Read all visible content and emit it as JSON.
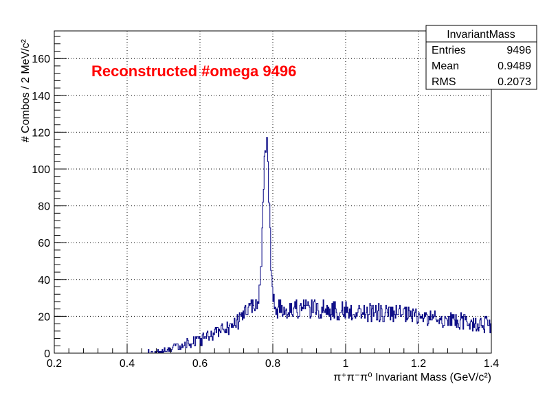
{
  "chart_data": {
    "type": "histogram",
    "annotation": "Reconstructed #omega 9496",
    "xlabel": "π⁺π⁻π⁰ Invariant Mass (GeV/c²)",
    "ylabel": "# Combos / 2 MeV/c²",
    "xlim": [
      0.2,
      1.4
    ],
    "ylim": [
      0,
      175
    ],
    "bin_width": 0.002,
    "grid": true,
    "x_ticks": [
      "0.2",
      "0.4",
      "0.6",
      "0.8",
      "1",
      "1.2",
      "1.4"
    ],
    "y_ticks": [
      "0",
      "20",
      "40",
      "60",
      "80",
      "100",
      "120",
      "140",
      "160"
    ],
    "stats_box": {
      "title": "InvariantMass",
      "rows": [
        {
          "label": "Entries",
          "value": "9496"
        },
        {
          "label": "Mean",
          "value": "0.9489"
        },
        {
          "label": "RMS",
          "value": "0.2073"
        }
      ]
    },
    "shape": {
      "start": 0.44,
      "peak_mean": 0.782,
      "peak_sigma": 0.008,
      "peak_height": 92,
      "peak_max": 117,
      "rise": [
        [
          0.44,
          0
        ],
        [
          0.5,
          1
        ],
        [
          0.6,
          7
        ],
        [
          0.7,
          16
        ],
        [
          0.75,
          28
        ],
        [
          0.8,
          24
        ],
        [
          0.9,
          24
        ],
        [
          1.0,
          23
        ],
        [
          1.2,
          20
        ],
        [
          1.4,
          15
        ]
      ]
    },
    "colors": {
      "line": "#000080",
      "annotation": "#ff0000",
      "grid": "#000000",
      "frame": "#000000"
    }
  }
}
